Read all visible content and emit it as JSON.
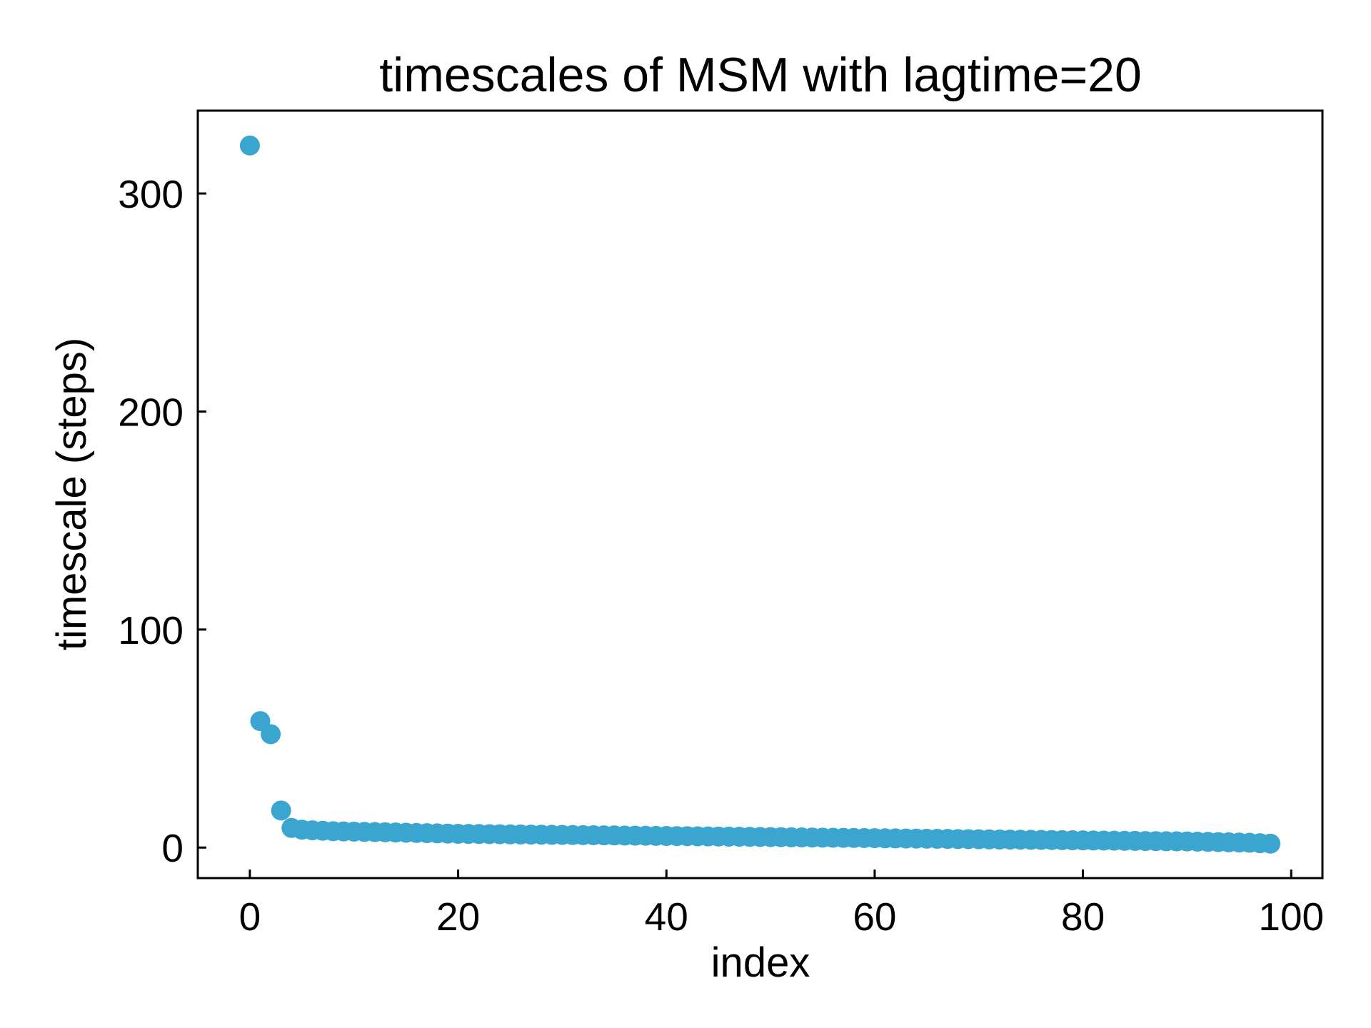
{
  "chart_data": {
    "type": "scatter",
    "title": "timescales of MSM with lagtime=20",
    "xlabel": "index",
    "ylabel": "timescale (steps)",
    "xlim": [
      -5,
      103
    ],
    "ylim": [
      -14,
      338
    ],
    "xticks": [
      0,
      20,
      40,
      60,
      80,
      100
    ],
    "yticks": [
      0,
      100,
      200,
      300
    ],
    "grid": false,
    "marker_color": "#3aa6d0",
    "series": [
      {
        "x": [
          0,
          1,
          2,
          3,
          4,
          5,
          6,
          7,
          8,
          9,
          10,
          11,
          12,
          13,
          14,
          15,
          16,
          17,
          18,
          19,
          20,
          21,
          22,
          23,
          24,
          25,
          26,
          27,
          28,
          29,
          30,
          31,
          32,
          33,
          34,
          35,
          36,
          37,
          38,
          39,
          40,
          41,
          42,
          43,
          44,
          45,
          46,
          47,
          48,
          49,
          50,
          51,
          52,
          53,
          54,
          55,
          56,
          57,
          58,
          59,
          60,
          61,
          62,
          63,
          64,
          65,
          66,
          67,
          68,
          69,
          70,
          71,
          72,
          73,
          74,
          75,
          76,
          77,
          78,
          79,
          80,
          81,
          82,
          83,
          84,
          85,
          86,
          87,
          88,
          89,
          90,
          91,
          92,
          93,
          94,
          95,
          96,
          97,
          98
        ],
        "y": [
          322,
          58,
          52,
          17,
          9,
          8.2,
          7.9,
          7.7,
          7.5,
          7.4,
          7.3,
          7.2,
          7.1,
          7.0,
          6.9,
          6.8,
          6.7,
          6.6,
          6.5,
          6.4,
          6.3,
          6.25,
          6.2,
          6.15,
          6.1,
          6.05,
          6.0,
          5.95,
          5.9,
          5.85,
          5.8,
          5.75,
          5.7,
          5.65,
          5.6,
          5.55,
          5.5,
          5.45,
          5.4,
          5.35,
          5.3,
          5.25,
          5.2,
          5.15,
          5.1,
          5.05,
          5.0,
          4.95,
          4.9,
          4.85,
          4.8,
          4.75,
          4.7,
          4.65,
          4.6,
          4.55,
          4.5,
          4.45,
          4.4,
          4.35,
          4.3,
          4.25,
          4.2,
          4.15,
          4.1,
          4.05,
          4.0,
          3.95,
          3.9,
          3.85,
          3.8,
          3.75,
          3.7,
          3.65,
          3.6,
          3.55,
          3.5,
          3.45,
          3.4,
          3.35,
          3.3,
          3.25,
          3.2,
          3.15,
          3.1,
          3.05,
          3.0,
          2.95,
          2.9,
          2.85,
          2.8,
          2.7,
          2.6,
          2.5,
          2.4,
          2.3,
          2.2,
          2.0,
          1.8
        ]
      }
    ]
  }
}
